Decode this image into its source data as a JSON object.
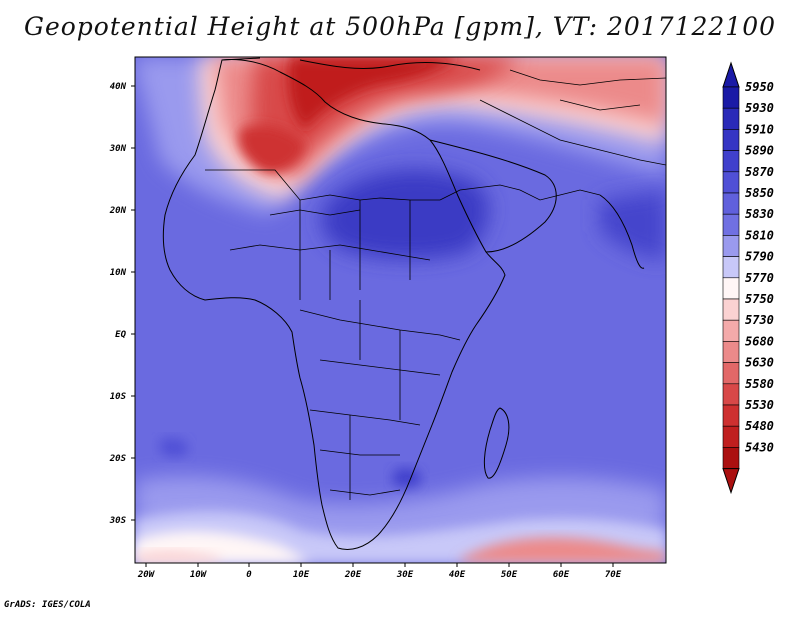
{
  "title": "Geopotential Height at 500hPa [gpm], VT: 2017122100",
  "credit": "GrADS: IGES/COLA",
  "map": {
    "lat_labels": [
      "40N",
      "30N",
      "20N",
      "10N",
      "EQ",
      "10S",
      "20S",
      "30S"
    ],
    "lon_labels": [
      "20W",
      "10W",
      "0",
      "10E",
      "20E",
      "30E",
      "40E",
      "50E",
      "60E",
      "70E"
    ]
  },
  "colorbar": {
    "levels": [
      "5950",
      "5930",
      "5910",
      "5890",
      "5870",
      "5850",
      "5830",
      "5810",
      "5790",
      "5770",
      "5750",
      "5730",
      "5680",
      "5630",
      "5580",
      "5530",
      "5480",
      "5430"
    ],
    "colors": [
      "#1a1aa6",
      "#2a2ab8",
      "#3535c4",
      "#4040cc",
      "#5050d6",
      "#6060dc",
      "#7070e2",
      "#9a9aee",
      "#c8c8f8",
      "#fff6f6",
      "#fbd2d2",
      "#f4aaaa",
      "#ec8a8a",
      "#e26868",
      "#d84848",
      "#ce3030",
      "#c01f1f",
      "#ab1010"
    ]
  }
}
